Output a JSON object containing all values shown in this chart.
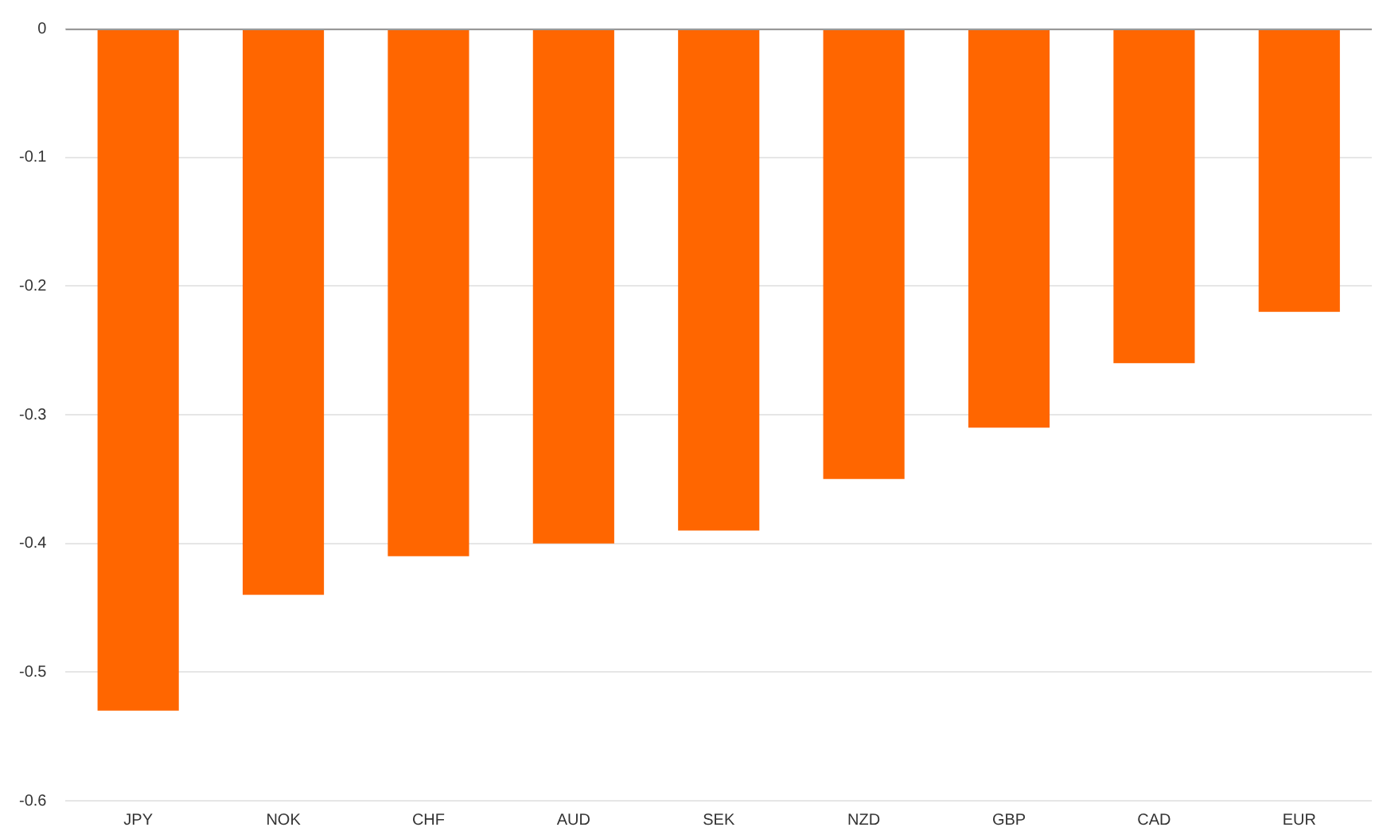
{
  "chart_data": {
    "type": "bar",
    "categories": [
      "JPY",
      "NOK",
      "CHF",
      "AUD",
      "SEK",
      "NZD",
      "GBP",
      "CAD",
      "EUR"
    ],
    "values": [
      -0.53,
      -0.44,
      -0.41,
      -0.4,
      -0.39,
      -0.35,
      -0.31,
      -0.26,
      -0.22
    ],
    "color": "#ff6600",
    "ylim": [
      -0.6,
      0
    ],
    "yticks": [
      -0.6,
      -0.5,
      -0.4,
      -0.3,
      -0.2,
      -0.1,
      0
    ],
    "grid": "y"
  }
}
